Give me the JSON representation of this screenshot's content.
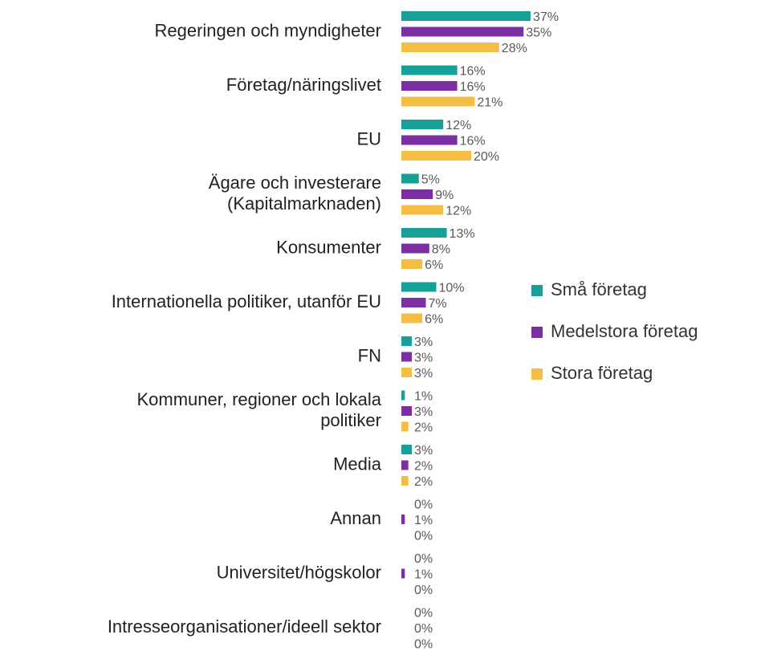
{
  "chart_data": {
    "type": "bar",
    "orientation": "horizontal",
    "categories": [
      "Regeringen och myndigheter",
      "Företag/näringslivet",
      "EU",
      "Ägare och investerare\n(Kapitalmarknaden)",
      "Konsumenter",
      "Internationella politiker, utanför EU",
      "FN",
      "Kommuner, regioner och lokala\npolitiker",
      "Media",
      "Annan",
      "Universitet/högskolor",
      "Intresseorganisationer/ideell sektor"
    ],
    "series": [
      {
        "name": "Små företag",
        "color": "#17a097",
        "values": [
          37,
          16,
          12,
          5,
          13,
          10,
          3,
          1,
          3,
          0,
          0,
          0
        ],
        "value_labels": [
          "37%",
          "16%",
          "12%",
          "5%",
          "13%",
          "10%",
          "3%",
          "1%",
          "3%",
          "0%",
          "0%",
          "0%"
        ]
      },
      {
        "name": "Medelstora företag",
        "color": "#7c2ea3",
        "values": [
          35,
          16,
          16,
          9,
          8,
          7,
          3,
          3,
          2,
          1,
          1,
          0
        ],
        "value_labels": [
          "35%",
          "16%",
          "16%",
          "9%",
          "8%",
          "7%",
          "3%",
          "3%",
          "2%",
          "1%",
          "1%",
          "0%"
        ]
      },
      {
        "name": "Stora företag",
        "color": "#f3be43",
        "values": [
          28,
          21,
          20,
          12,
          6,
          6,
          3,
          2,
          2,
          0,
          0,
          0
        ],
        "value_labels": [
          "28%",
          "21%",
          "20%",
          "12%",
          "6%",
          "6%",
          "3%",
          "2%",
          "2%",
          "0%",
          "0%",
          "0%"
        ]
      }
    ],
    "legend": "right"
  }
}
